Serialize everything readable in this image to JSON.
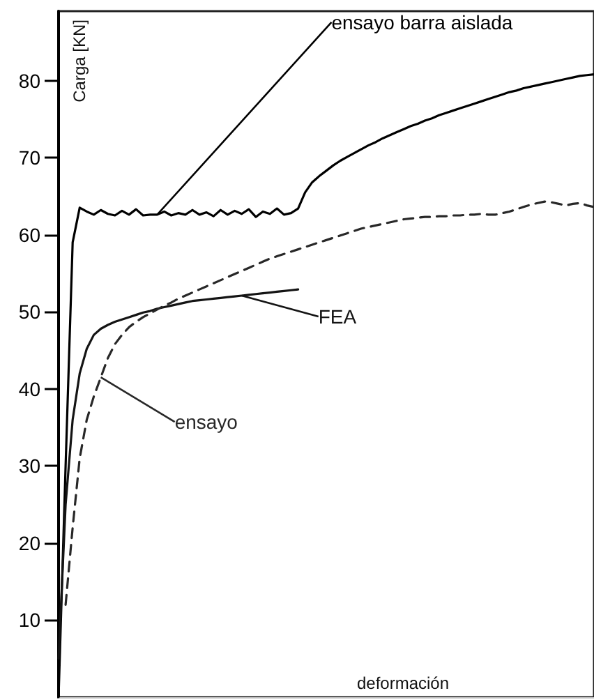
{
  "chart_data": {
    "type": "line",
    "xlabel": "deformación",
    "ylabel": "Carga [KN]",
    "categories": [
      null,
      null,
      null,
      null,
      null,
      null,
      null,
      null,
      null,
      null,
      null,
      null,
      null,
      null,
      null,
      null,
      null,
      null,
      null,
      null,
      null,
      null,
      null,
      null,
      null,
      null,
      null,
      null,
      null,
      null,
      null,
      null,
      null,
      null,
      null,
      null,
      null,
      null,
      null,
      null,
      null,
      null,
      null,
      null,
      null,
      null,
      null,
      null,
      null,
      null,
      null,
      null,
      null,
      null,
      null,
      null,
      null,
      null,
      null,
      null,
      null,
      null,
      null,
      null,
      null,
      null,
      null,
      null,
      null,
      null,
      null,
      null,
      null,
      null,
      null,
      null,
      null
    ],
    "ylim": [
      0,
      89
    ],
    "yticks": [
      10,
      20,
      30,
      40,
      50,
      60,
      70,
      80
    ],
    "tick_labels": "y",
    "grid": false,
    "marker": "none",
    "series": [
      {
        "name": "ensayo barra aislada",
        "color": "#000000",
        "line_style": "solid",
        "values": [
          0,
          30,
          59,
          63.5,
          63.0,
          62.6,
          63.2,
          62.7,
          62.5,
          63.1,
          62.6,
          63.3,
          62.5,
          62.6,
          62.6,
          63.0,
          62.5,
          62.8,
          62.6,
          63.2,
          62.6,
          62.9,
          62.4,
          63.2,
          62.6,
          63.1,
          62.7,
          63.3,
          62.3,
          63.0,
          62.7,
          63.4,
          62.6,
          62.8,
          63.4,
          65.5,
          66.8,
          67.6,
          68.3,
          69.0,
          69.6,
          70.1,
          70.6,
          71.1,
          71.6,
          72.0,
          72.5,
          72.9,
          73.3,
          73.7,
          74.1,
          74.4,
          74.8,
          75.1,
          75.5,
          75.8,
          76.1,
          76.4,
          76.7,
          77.0,
          77.3,
          77.6,
          77.9,
          78.2,
          78.5,
          78.7,
          79.0,
          79.2,
          79.4,
          79.6,
          79.8,
          80.0,
          80.2,
          80.4,
          80.6,
          80.7,
          80.8
        ]
      },
      {
        "name": "FEA",
        "color": "#141414",
        "line_style": "solid",
        "values": [
          5,
          25,
          36,
          42,
          45.2,
          47.0,
          47.8,
          48.3,
          48.7,
          49.0,
          49.3,
          49.6,
          49.9,
          50.1,
          50.4,
          50.6,
          50.8,
          51.0,
          51.2,
          51.4,
          51.5,
          51.6,
          51.7,
          51.8,
          51.9,
          52.0,
          52.1,
          52.2,
          52.3,
          52.4,
          52.5,
          52.6,
          52.7,
          52.8,
          52.9,
          null,
          null,
          null,
          null,
          null,
          null,
          null,
          null,
          null,
          null,
          null,
          null,
          null,
          null,
          null,
          null,
          null,
          null,
          null,
          null,
          null,
          null,
          null,
          null,
          null,
          null,
          null,
          null,
          null,
          null,
          null,
          null,
          null,
          null,
          null,
          null,
          null,
          null,
          null,
          null,
          null,
          null
        ]
      },
      {
        "name": "ensayo",
        "color": "#282828",
        "line_style": "dashed",
        "values": [
          null,
          12,
          22,
          31,
          36,
          39,
          41.5,
          44,
          45.8,
          47.0,
          48.0,
          48.7,
          49.3,
          49.8,
          50.3,
          50.8,
          51.2,
          51.7,
          52.1,
          52.5,
          52.9,
          53.3,
          53.7,
          54.1,
          54.5,
          54.9,
          55.3,
          55.7,
          56.1,
          56.5,
          56.9,
          57.2,
          57.5,
          57.8,
          58.1,
          58.4,
          58.7,
          59.0,
          59.3,
          59.6,
          59.9,
          60.2,
          60.5,
          60.8,
          61.0,
          61.2,
          61.4,
          61.6,
          61.8,
          62.0,
          62.1,
          62.2,
          62.3,
          62.3,
          62.4,
          62.4,
          62.5,
          62.5,
          62.6,
          62.6,
          62.7,
          62.6,
          62.6,
          62.8,
          63.0,
          63.3,
          63.6,
          63.9,
          64.1,
          64.3,
          64.2,
          64.0,
          63.8,
          64.0,
          64.1,
          63.8,
          63.6
        ]
      }
    ]
  }
}
